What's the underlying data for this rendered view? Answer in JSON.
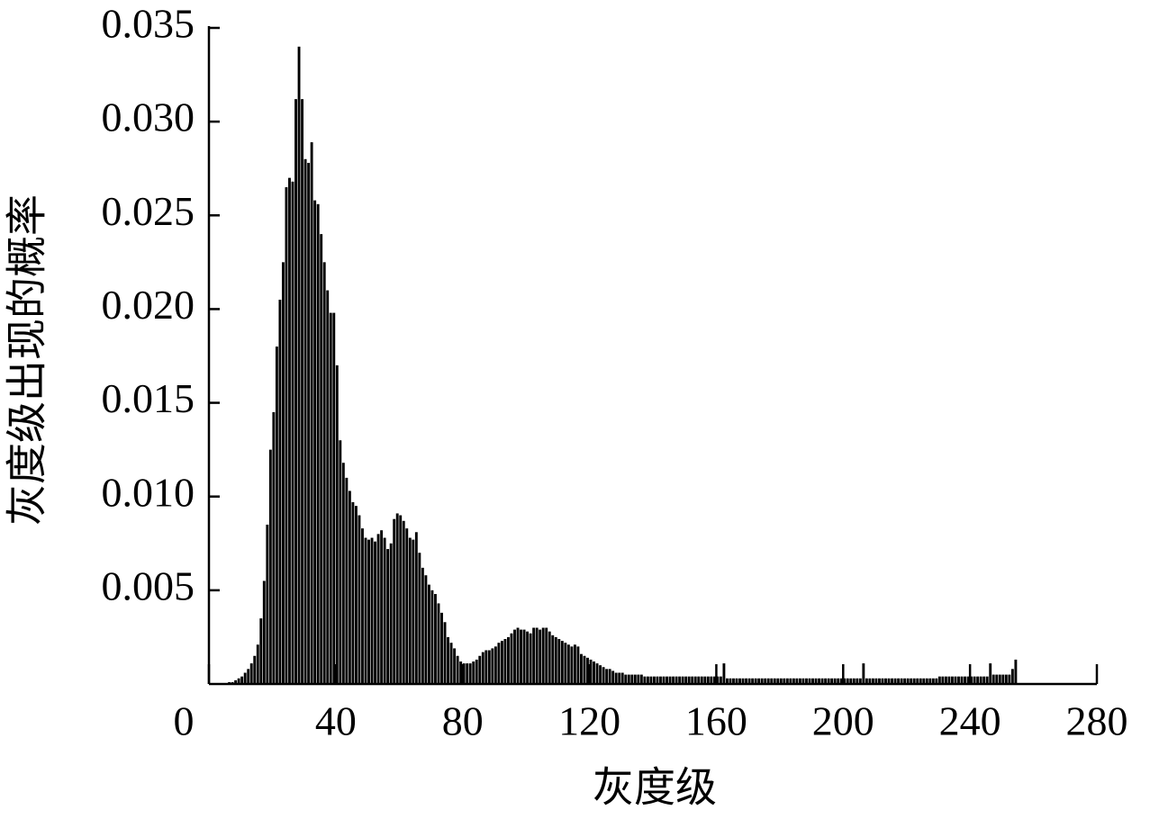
{
  "chart_data": {
    "type": "histogram",
    "xlabel": "灰度级",
    "ylabel": "灰度级出现的概率",
    "color": "#000000",
    "xlim": [
      0,
      280
    ],
    "xticks": [
      0,
      40,
      80,
      120,
      160,
      200,
      240,
      280
    ],
    "ylim": [
      0,
      0.035
    ],
    "yticks": [
      0.005,
      {
        "value": 0.01,
        "label": "0.010"
      },
      0.015,
      {
        "value": 0.02,
        "label": "0.020"
      },
      0.025,
      {
        "value": 0.03,
        "label": "0.030"
      },
      0.035
    ],
    "bins": [
      0,
      1,
      2,
      3,
      4,
      5,
      6,
      7,
      8,
      9,
      10,
      11,
      12,
      13,
      14,
      15,
      16,
      17,
      18,
      19,
      20,
      21,
      22,
      23,
      24,
      25,
      26,
      27,
      28,
      29,
      30,
      31,
      32,
      33,
      34,
      35,
      36,
      37,
      38,
      39,
      40,
      41,
      42,
      43,
      44,
      45,
      46,
      47,
      48,
      49,
      50,
      51,
      52,
      53,
      54,
      55,
      56,
      57,
      58,
      59,
      60,
      61,
      62,
      63,
      64,
      65,
      66,
      67,
      68,
      69,
      70,
      71,
      72,
      73,
      74,
      75,
      76,
      77,
      78,
      79,
      80,
      81,
      82,
      83,
      84,
      85,
      86,
      87,
      88,
      89,
      90,
      91,
      92,
      93,
      94,
      95,
      96,
      97,
      98,
      99,
      100,
      101,
      102,
      103,
      104,
      105,
      106,
      107,
      108,
      109,
      110,
      111,
      112,
      113,
      114,
      115,
      116,
      117,
      118,
      119,
      120,
      121,
      122,
      123,
      124,
      125,
      126,
      127,
      128,
      129,
      130,
      131,
      132,
      133,
      134,
      135,
      136,
      137,
      138,
      139,
      140,
      141,
      142,
      143,
      144,
      145,
      146,
      147,
      148,
      149,
      150,
      151,
      152,
      153,
      154,
      155,
      156,
      157,
      158,
      159,
      160,
      161,
      162,
      163,
      164,
      165,
      166,
      167,
      168,
      169,
      170,
      171,
      172,
      173,
      174,
      175,
      176,
      177,
      178,
      179,
      180,
      181,
      182,
      183,
      184,
      185,
      186,
      187,
      188,
      189,
      190,
      191,
      192,
      193,
      194,
      195,
      196,
      197,
      198,
      199,
      200,
      201,
      202,
      203,
      204,
      205,
      206,
      207,
      208,
      209,
      210,
      211,
      212,
      213,
      214,
      215,
      216,
      217,
      218,
      219,
      220,
      221,
      222,
      223,
      224,
      225,
      226,
      227,
      228,
      229,
      230,
      231,
      232,
      233,
      234,
      235,
      236,
      237,
      238,
      239,
      240,
      241,
      242,
      243,
      244,
      245,
      246,
      247,
      248,
      249,
      250,
      251,
      252,
      253,
      254,
      255,
      256
    ],
    "values": [
      0,
      0,
      0,
      0,
      0,
      0,
      0.0001,
      0.0001,
      0.0002,
      0.0003,
      0.0004,
      0.0006,
      0.0008,
      0.0011,
      0.0015,
      0.0021,
      0.0035,
      0.0055,
      0.0085,
      0.0125,
      0.0145,
      0.018,
      0.0205,
      0.0225,
      0.0265,
      0.027,
      0.0268,
      0.0312,
      0.034,
      0.0312,
      0.028,
      0.0278,
      0.0289,
      0.0258,
      0.0256,
      0.024,
      0.0225,
      0.021,
      0.0198,
      0.0198,
      0.017,
      0.013,
      0.0118,
      0.011,
      0.0103,
      0.0097,
      0.0095,
      0.009,
      0.0083,
      0.0078,
      0.0077,
      0.0078,
      0.0076,
      0.008,
      0.0082,
      0.0078,
      0.0072,
      0.0075,
      0.0088,
      0.0091,
      0.009,
      0.0087,
      0.0083,
      0.0078,
      0.0077,
      0.0081,
      0.007,
      0.0062,
      0.0058,
      0.0053,
      0.005,
      0.0048,
      0.0043,
      0.0038,
      0.0033,
      0.0025,
      0.0022,
      0.0019,
      0.0015,
      0.0012,
      0.0011,
      0.0011,
      0.0011,
      0.0012,
      0.0013,
      0.0015,
      0.0017,
      0.0018,
      0.0018,
      0.0019,
      0.002,
      0.0022,
      0.0023,
      0.0024,
      0.0025,
      0.0027,
      0.0029,
      0.003,
      0.0029,
      0.0029,
      0.0028,
      0.0027,
      0.003,
      0.003,
      0.0029,
      0.003,
      0.003,
      0.0028,
      0.0026,
      0.0025,
      0.0024,
      0.0023,
      0.0022,
      0.0021,
      0.002,
      0.0021,
      0.002,
      0.0016,
      0.0015,
      0.0014,
      0.0013,
      0.0012,
      0.0011,
      0.001,
      0.0009,
      0.0008,
      0.0008,
      0.0007,
      0.0006,
      0.0006,
      0.0006,
      0.0005,
      0.0005,
      0.0005,
      0.0005,
      0.0005,
      0.0005,
      0.0004,
      0.0004,
      0.0004,
      0.0004,
      0.0004,
      0.0004,
      0.0004,
      0.0004,
      0.0004,
      0.0004,
      0.0004,
      0.0004,
      0.0004,
      0.0004,
      0.0004,
      0.0004,
      0.0004,
      0.0004,
      0.0004,
      0.0004,
      0.0004,
      0.0004,
      0.0004,
      0.0004,
      0.0004,
      0.0011,
      0.0003,
      0.0003,
      0.0003,
      0.0003,
      0.0003,
      0.0003,
      0.0003,
      0.0003,
      0.0003,
      0.0003,
      0.0003,
      0.0003,
      0.0003,
      0.0003,
      0.0003,
      0.0003,
      0.0003,
      0.0003,
      0.0003,
      0.0003,
      0.0003,
      0.0003,
      0.0003,
      0.0003,
      0.0003,
      0.0003,
      0.0003,
      0.0003,
      0.0003,
      0.0003,
      0.0003,
      0.0003,
      0.0003,
      0.0003,
      0.0003,
      0.0003,
      0.0003,
      0.0003,
      0.0003,
      0.0003,
      0.0003,
      0.0003,
      0.0003,
      0.0011,
      0.0003,
      0.0003,
      0.0003,
      0.0003,
      0.0003,
      0.0003,
      0.0003,
      0.0003,
      0.0003,
      0.0003,
      0.0003,
      0.0003,
      0.0003,
      0.0003,
      0.0003,
      0.0003,
      0.0003,
      0.0003,
      0.0003,
      0.0003,
      0.0003,
      0.0003,
      0.0003,
      0.0004,
      0.0004,
      0.0004,
      0.0004,
      0.0004,
      0.0004,
      0.0004,
      0.0004,
      0.0004,
      0.0004,
      0.0004,
      0.0004,
      0.0004,
      0.0004,
      0.0004,
      0.0004,
      0.0011,
      0.0005,
      0.0005,
      0.0005,
      0.0005,
      0.0005,
      0.0005,
      0.0008,
      0.0013,
      0
    ]
  }
}
